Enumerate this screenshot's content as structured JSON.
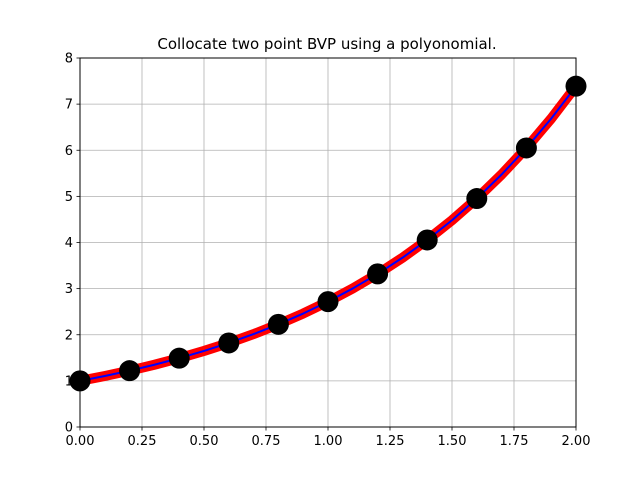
{
  "chart_data": {
    "type": "line",
    "title": "Collocate two point BVP using a polyonomial.",
    "xlabel": "",
    "ylabel": "",
    "xlim": [
      0,
      2
    ],
    "ylim": [
      0,
      8
    ],
    "grid": true,
    "x_ticks": [
      0,
      0.25,
      0.5,
      0.75,
      1,
      1.25,
      1.5,
      1.75,
      2
    ],
    "x_tick_labels": [
      "0.00",
      "0.25",
      "0.50",
      "0.75",
      "1.00",
      "1.25",
      "1.50",
      "1.75",
      "2.00"
    ],
    "y_ticks": [
      0,
      1,
      2,
      3,
      4,
      5,
      6,
      7,
      8
    ],
    "y_tick_labels": [
      "0",
      "1",
      "2",
      "3",
      "4",
      "5",
      "6",
      "7",
      "8"
    ],
    "series": [
      {
        "style": "thick-line",
        "color": "#ff0000",
        "x": [
          0,
          0.1,
          0.2,
          0.3,
          0.4,
          0.5,
          0.6,
          0.7,
          0.8,
          0.9,
          1.0,
          1.1,
          1.2,
          1.3,
          1.4,
          1.5,
          1.6,
          1.7,
          1.8,
          1.9,
          2.0
        ],
        "y": [
          1.0,
          1.105,
          1.221,
          1.35,
          1.492,
          1.649,
          1.822,
          2.014,
          2.226,
          2.46,
          2.718,
          3.004,
          3.32,
          3.669,
          4.055,
          4.482,
          4.953,
          5.474,
          6.05,
          6.686,
          7.389
        ]
      },
      {
        "style": "thin-line",
        "color": "#0000ff",
        "x": [
          0,
          0.1,
          0.2,
          0.3,
          0.4,
          0.5,
          0.6,
          0.7,
          0.8,
          0.9,
          1.0,
          1.1,
          1.2,
          1.3,
          1.4,
          1.5,
          1.6,
          1.7,
          1.8,
          1.9,
          2.0
        ],
        "y": [
          1.0,
          1.105,
          1.221,
          1.35,
          1.492,
          1.649,
          1.822,
          2.014,
          2.226,
          2.46,
          2.718,
          3.004,
          3.32,
          3.669,
          4.055,
          4.482,
          4.953,
          5.474,
          6.05,
          6.686,
          7.389
        ]
      },
      {
        "style": "markers",
        "color": "#000000",
        "x": [
          0,
          0.2,
          0.4,
          0.6,
          0.8,
          1.0,
          1.2,
          1.4,
          1.6,
          1.8,
          2.0
        ],
        "y": [
          1.0,
          1.221,
          1.492,
          1.822,
          2.226,
          2.718,
          3.32,
          4.055,
          4.953,
          6.05,
          7.389
        ]
      }
    ]
  }
}
